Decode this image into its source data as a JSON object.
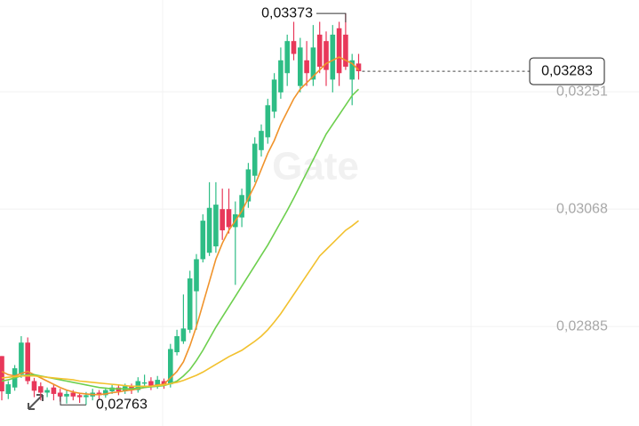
{
  "chart_data": {
    "type": "candlestick",
    "watermark": "Gate",
    "categories": [
      null,
      null,
      null,
      null,
      null,
      null,
      null,
      null,
      null,
      null,
      null,
      null,
      null,
      null,
      null,
      null,
      null,
      null,
      null,
      null,
      null,
      null,
      null,
      null,
      null,
      null,
      null,
      null,
      null,
      null,
      null,
      null,
      null,
      null,
      null,
      null,
      null,
      null,
      null,
      null,
      null,
      null,
      null,
      null,
      null,
      null,
      null,
      null,
      null,
      null,
      null,
      null,
      null,
      null,
      null,
      null
    ],
    "ylim": [
      0.0273,
      0.03394
    ],
    "yticks": [
      {
        "value": 0.03251,
        "label": "0,03251"
      },
      {
        "value": 0.03068,
        "label": "0,03068"
      },
      {
        "value": 0.02885,
        "label": "0,02885"
      }
    ],
    "grid": true,
    "up_color": "#2ebd85",
    "down_color": "#e8385a",
    "open": [
      0.02839,
      0.0278,
      0.0279,
      0.0281,
      0.0286,
      0.028,
      0.02792,
      0.02782,
      0.0279,
      0.02782,
      0.02776,
      0.02782,
      0.02778,
      0.02775,
      0.02776,
      0.02782,
      0.02778,
      0.02784,
      0.0279,
      0.02784,
      0.02792,
      0.02786,
      0.02796,
      0.028,
      0.02792,
      0.028,
      0.02795,
      0.02845,
      0.02862,
      0.0288,
      0.0294,
      0.0299,
      0.03,
      0.0301,
      0.03068,
      0.03068,
      0.0304,
      0.03055,
      0.0308,
      0.0312,
      0.0316,
      0.0318,
      0.0322,
      0.0325,
      0.0328,
      0.0333,
      0.0326,
      0.033,
      0.0327,
      0.0334,
      0.0333,
      0.0327,
      0.0335,
      0.0334,
      0.0327,
      0.03295
    ],
    "high": [
      0.02839,
      0.028,
      0.02825,
      0.0287,
      0.02868,
      0.02805,
      0.02798,
      0.0279,
      0.02795,
      0.02788,
      0.02786,
      0.02786,
      0.02782,
      0.02783,
      0.02788,
      0.02786,
      0.0279,
      0.02794,
      0.02795,
      0.02796,
      0.02796,
      0.02806,
      0.0281,
      0.02806,
      0.02808,
      0.02804,
      0.02858,
      0.0288,
      0.02935,
      0.02972,
      0.02998,
      0.0306,
      0.0311,
      0.0311,
      0.031,
      0.031,
      0.0308,
      0.031,
      0.0314,
      0.0318,
      0.032,
      0.0324,
      0.0328,
      0.0332,
      0.0334,
      0.0336,
      0.03335,
      0.0333,
      0.03355,
      0.0336,
      0.03345,
      0.03355,
      0.0336,
      0.03373,
      0.0331,
      0.0331
    ],
    "low": [
      0.0277,
      0.02772,
      0.02785,
      0.02805,
      0.02795,
      0.02775,
      0.0277,
      0.02775,
      0.0277,
      0.02768,
      0.02765,
      0.0277,
      0.02766,
      0.02763,
      0.0277,
      0.02772,
      0.02774,
      0.0278,
      0.02778,
      0.0278,
      0.0278,
      0.02782,
      0.0279,
      0.02786,
      0.02788,
      0.02788,
      0.0279,
      0.0284,
      0.02858,
      0.02875,
      0.0288,
      0.02985,
      0.02995,
      0.03,
      0.0302,
      0.0303,
      0.0295,
      0.0304,
      0.0307,
      0.0311,
      0.0315,
      0.0317,
      0.0321,
      0.0324,
      0.0326,
      0.033,
      0.0325,
      0.0326,
      0.0326,
      0.0328,
      0.0326,
      0.0325,
      0.0326,
      0.03285,
      0.0323,
      0.0327
    ],
    "close": [
      0.02784,
      0.02795,
      0.0282,
      0.0286,
      0.028,
      0.02785,
      0.02782,
      0.02786,
      0.0278,
      0.02776,
      0.0278,
      0.02776,
      0.02775,
      0.02778,
      0.02782,
      0.02778,
      0.02786,
      0.0279,
      0.02784,
      0.02792,
      0.02786,
      0.028,
      0.02798,
      0.02792,
      0.02802,
      0.02794,
      0.0285,
      0.0287,
      0.02882,
      0.0296,
      0.0299,
      0.0305,
      0.0307,
      0.03075,
      0.03035,
      0.0304,
      0.0306,
      0.0309,
      0.0313,
      0.0317,
      0.0319,
      0.0323,
      0.0327,
      0.033,
      0.0333,
      0.0331,
      0.0332,
      0.0328,
      0.0332,
      0.0329,
      0.03285,
      0.0334,
      0.0328,
      0.0329,
      0.033,
      0.03283
    ],
    "series": [
      {
        "color": "#f0932b",
        "values": [
          0.02815,
          0.0281,
          0.02808,
          0.02812,
          0.02815,
          0.0281,
          0.02805,
          0.028,
          0.02795,
          0.0279,
          0.02786,
          0.02783,
          0.02781,
          0.0278,
          0.02779,
          0.02779,
          0.0278,
          0.02782,
          0.02783,
          0.02785,
          0.02786,
          0.02788,
          0.0279,
          0.02792,
          0.02794,
          0.02795,
          0.02805,
          0.02815,
          0.0283,
          0.02855,
          0.02885,
          0.0292,
          0.02955,
          0.0299,
          0.03015,
          0.03035,
          0.0305,
          0.03065,
          0.03085,
          0.03105,
          0.0313,
          0.03155,
          0.03175,
          0.032,
          0.0322,
          0.0324,
          0.03255,
          0.03265,
          0.03275,
          0.03285,
          0.03295,
          0.033,
          0.03305,
          0.033,
          0.03295,
          0.03285
        ]
      },
      {
        "color": "#6dcf4e",
        "values": [
          0.028,
          0.02802,
          0.02805,
          0.02808,
          0.0281,
          0.0281,
          0.02808,
          0.02806,
          0.02804,
          0.02802,
          0.028,
          0.02798,
          0.02796,
          0.02794,
          0.02792,
          0.0279,
          0.02789,
          0.02788,
          0.02788,
          0.02788,
          0.02788,
          0.02789,
          0.0279,
          0.02791,
          0.02792,
          0.02793,
          0.02796,
          0.028,
          0.02808,
          0.02818,
          0.02832,
          0.02848,
          0.02866,
          0.02884,
          0.029,
          0.02916,
          0.02932,
          0.02948,
          0.02964,
          0.0298,
          0.02996,
          0.03012,
          0.0303,
          0.03048,
          0.03066,
          0.03085,
          0.03105,
          0.03125,
          0.03145,
          0.03165,
          0.03185,
          0.032,
          0.03215,
          0.0323,
          0.03245,
          0.03255
        ]
      },
      {
        "color": "#f2c12e",
        "values": [
          0.02805,
          0.02806,
          0.02807,
          0.02808,
          0.02808,
          0.02808,
          0.02807,
          0.02806,
          0.02805,
          0.02804,
          0.02803,
          0.02802,
          0.028,
          0.02799,
          0.02798,
          0.02797,
          0.02796,
          0.02795,
          0.02794,
          0.02793,
          0.02792,
          0.02792,
          0.02792,
          0.02792,
          0.02793,
          0.02794,
          0.02796,
          0.02798,
          0.02801,
          0.02805,
          0.02809,
          0.02814,
          0.0282,
          0.02826,
          0.02832,
          0.02838,
          0.02843,
          0.02848,
          0.02855,
          0.02862,
          0.0287,
          0.0288,
          0.02892,
          0.02905,
          0.0292,
          0.02935,
          0.0295,
          0.02965,
          0.0298,
          0.02995,
          0.03005,
          0.03015,
          0.03025,
          0.03035,
          0.03042,
          0.0305
        ]
      }
    ],
    "max_label": {
      "value": 0.03373,
      "label": "0,03373"
    },
    "min_label": {
      "value": 0.02763,
      "label": "0,02763"
    },
    "last_price": {
      "value": 0.03283,
      "label": "0,03283"
    }
  }
}
